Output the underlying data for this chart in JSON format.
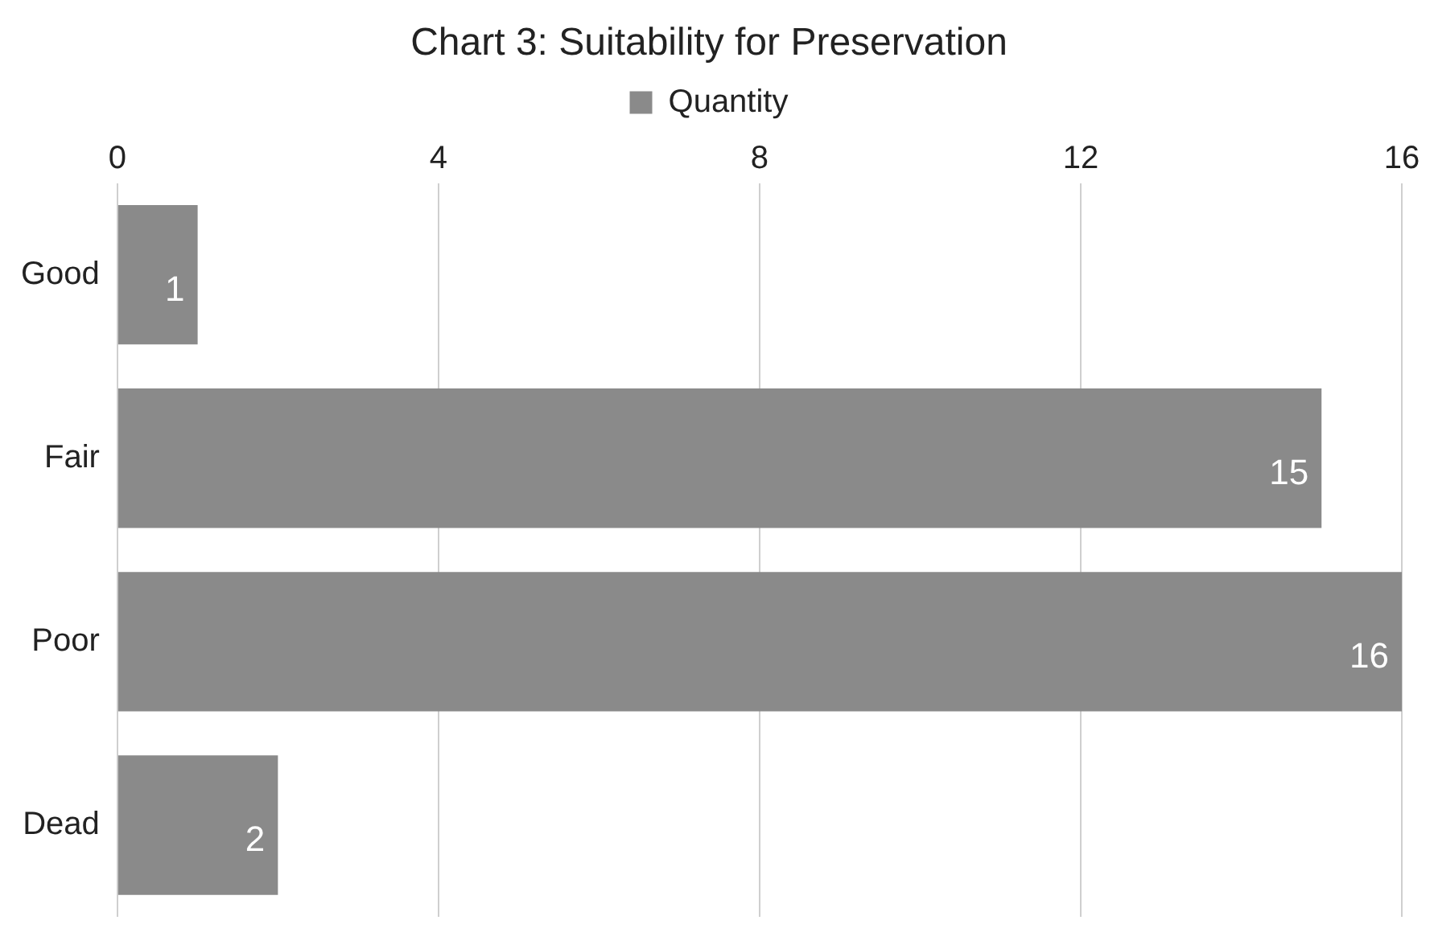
{
  "chart_data": {
    "type": "bar",
    "orientation": "horizontal",
    "title": "Chart 3: Suitability for Preservation",
    "categories": [
      "Good",
      "Fair",
      "Poor",
      "Dead"
    ],
    "series": [
      {
        "name": "Quantity",
        "color": "#8a8a8a",
        "values": [
          1,
          15,
          16,
          2
        ]
      }
    ],
    "xlim": [
      0,
      16
    ],
    "xticks": [
      0,
      4,
      8,
      12,
      16
    ],
    "grid": "x",
    "legend": "top",
    "data_labels": true
  }
}
